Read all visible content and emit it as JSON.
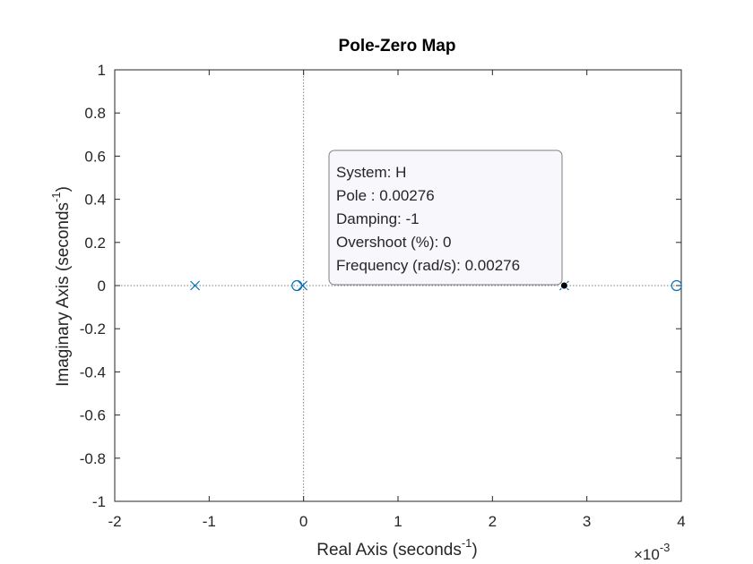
{
  "chart_data": {
    "type": "scatter",
    "title": "Pole-Zero Map",
    "xlabel": "Real Axis (seconds",
    "ylabel": "Imaginary Axis (seconds",
    "unit_exponent": "-1",
    "x_multiplier": {
      "base": "×10",
      "exponent": "-3"
    },
    "xlim": [
      -2,
      4
    ],
    "ylim": [
      -1,
      1
    ],
    "x_scale": 0.001,
    "xticks": [
      -2,
      -1,
      0,
      1,
      2,
      3,
      4
    ],
    "xtick_labels": [
      "-2",
      "-1",
      "0",
      "1",
      "2",
      "3",
      "4"
    ],
    "yticks": [
      -1,
      -0.8,
      -0.6,
      -0.4,
      -0.2,
      0,
      0.2,
      0.4,
      0.6,
      0.8,
      1
    ],
    "ytick_labels": [
      "-1",
      "-0.8",
      "-0.6",
      "-0.4",
      "-0.2",
      "0",
      "0.2",
      "0.4",
      "0.6",
      "0.8",
      "1"
    ],
    "grid": false,
    "reference_lines": {
      "x_zero": true,
      "y_zero": true
    },
    "series": [
      {
        "marker": "x",
        "points": [
          {
            "x": -0.00115,
            "y": 0
          },
          {
            "x": -1e-05,
            "y": 0
          },
          {
            "x": 0.00276,
            "y": 0
          }
        ]
      },
      {
        "marker": "o",
        "points": [
          {
            "x": -7e-05,
            "y": 0
          },
          {
            "x": 0.00395,
            "y": 0
          }
        ]
      }
    ],
    "highlighted_point": {
      "x": 0.00276,
      "y": 0
    },
    "datatip": {
      "lines": [
        "System: H",
        "Pole : 0.00276",
        "Damping: -1",
        "Overshoot (%): 0",
        "Frequency (rad/s): 0.00276"
      ]
    },
    "colors": {
      "marker": "#0072bd",
      "axis": "#262626",
      "reference_line": "#7f7f7f",
      "datatip_bg": "#f7f7fc",
      "datatip_border": "#7f7f7f",
      "highlight": "#000000"
    }
  }
}
